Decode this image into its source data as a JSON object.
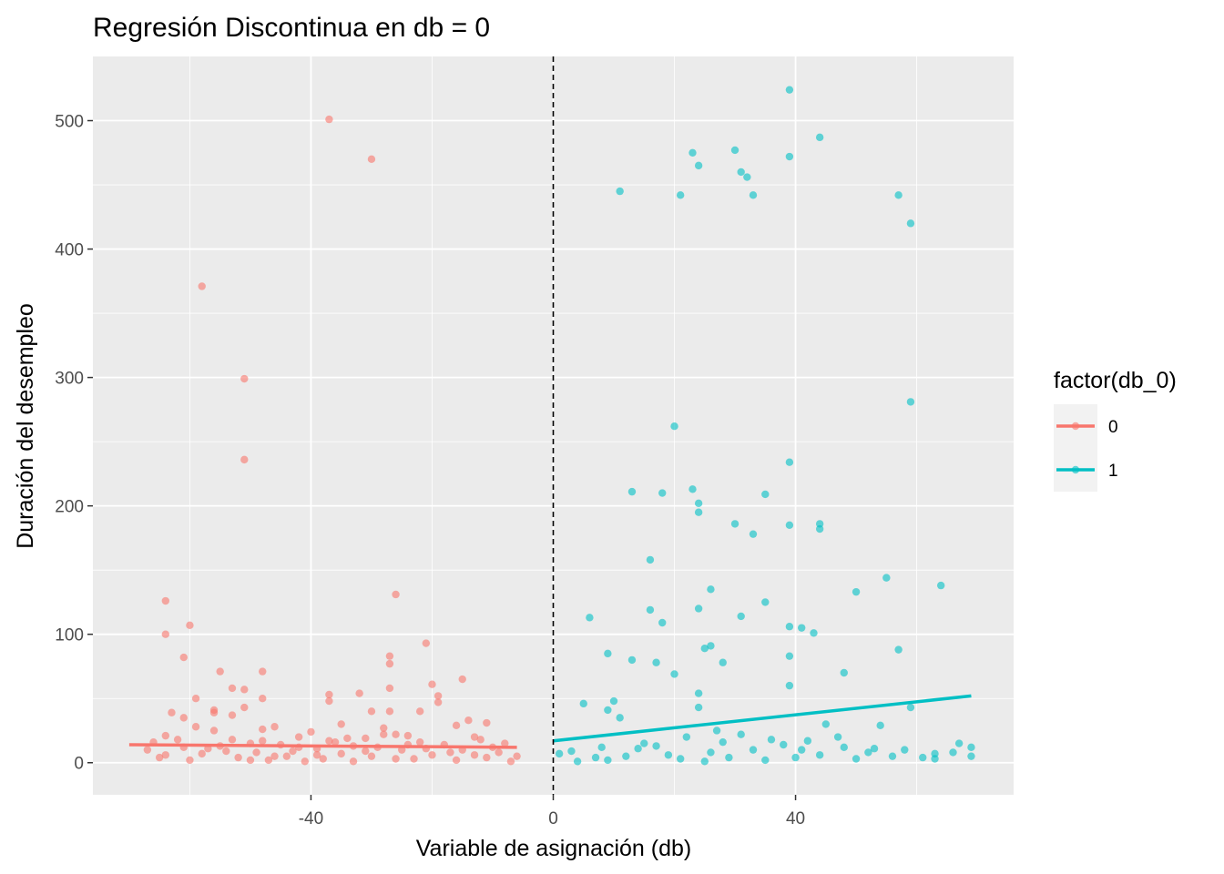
{
  "chart_data": {
    "type": "scatter",
    "title": "Regresión Discontinua en db = 0",
    "xlabel": "Variable de asignación (db)",
    "ylabel": "Duración del desempleo",
    "xlim": [
      -76,
      76
    ],
    "ylim": [
      -25,
      550
    ],
    "x_ticks": [
      -40,
      0,
      40
    ],
    "x_tick_labels": [
      "-40",
      "0",
      "40"
    ],
    "y_ticks": [
      0,
      100,
      200,
      300,
      400,
      500
    ],
    "y_tick_labels": [
      "0",
      "100",
      "200",
      "300",
      "400",
      "500"
    ],
    "grid": true,
    "cutoff": {
      "x": 0,
      "style": "dashed"
    },
    "legend": {
      "title": "factor(db_0)",
      "placement": "right",
      "entries": [
        "0",
        "1"
      ]
    },
    "colors": {
      "0": "#F8766D",
      "1": "#00BFC4",
      "panel": "#EBEBEB",
      "grid": "#FFFFFF"
    },
    "series": [
      {
        "name": "0",
        "points": [
          [
            -37,
            501
          ],
          [
            -30,
            470
          ],
          [
            -58,
            371
          ],
          [
            -51,
            299
          ],
          [
            -51,
            236
          ],
          [
            -26,
            131
          ],
          [
            -64,
            126
          ],
          [
            -60,
            107
          ],
          [
            -64,
            100
          ],
          [
            -21,
            93
          ],
          [
            -27,
            83
          ],
          [
            -61,
            82
          ],
          [
            -27,
            77
          ],
          [
            -55,
            71
          ],
          [
            -48,
            71
          ],
          [
            -15,
            65
          ],
          [
            -20,
            61
          ],
          [
            -53,
            58
          ],
          [
            -51,
            57
          ],
          [
            -27,
            58
          ],
          [
            -32,
            54
          ],
          [
            -37,
            53
          ],
          [
            -19,
            52
          ],
          [
            -59,
            50
          ],
          [
            -48,
            50
          ],
          [
            -37,
            48
          ],
          [
            -19,
            47
          ],
          [
            -51,
            43
          ],
          [
            -30,
            40
          ],
          [
            -27,
            40
          ],
          [
            -63,
            39
          ],
          [
            -22,
            40
          ],
          [
            -56,
            41
          ],
          [
            -56,
            39
          ],
          [
            -53,
            37
          ],
          [
            -61,
            35
          ],
          [
            -11,
            31
          ],
          [
            -14,
            33
          ],
          [
            -16,
            29
          ],
          [
            -35,
            30
          ],
          [
            -46,
            28
          ],
          [
            -28,
            27
          ],
          [
            -56,
            25
          ],
          [
            -59,
            28
          ],
          [
            -48,
            26
          ],
          [
            -40,
            24
          ],
          [
            -26,
            22
          ],
          [
            -13,
            20
          ],
          [
            -24,
            21
          ],
          [
            -64,
            21
          ],
          [
            -42,
            20
          ],
          [
            -12,
            18
          ],
          [
            -31,
            19
          ],
          [
            -53,
            18
          ],
          [
            -37,
            17
          ],
          [
            -50,
            15
          ],
          [
            -66,
            16
          ],
          [
            -22,
            16
          ],
          [
            -8,
            15
          ],
          [
            -45,
            14
          ],
          [
            -33,
            13
          ],
          [
            -18,
            14
          ],
          [
            -61,
            12
          ],
          [
            -55,
            13
          ],
          [
            -29,
            12
          ],
          [
            -39,
            11
          ],
          [
            -15,
            10
          ],
          [
            -67,
            10
          ],
          [
            -43,
            9
          ],
          [
            -25,
            10
          ],
          [
            -9,
            8
          ],
          [
            -49,
            8
          ],
          [
            -35,
            7
          ],
          [
            -58,
            7
          ],
          [
            -20,
            6
          ],
          [
            -64,
            6
          ],
          [
            -30,
            5
          ],
          [
            -44,
            5
          ],
          [
            -11,
            4
          ],
          [
            -52,
            4
          ],
          [
            -38,
            3
          ],
          [
            -26,
            3
          ],
          [
            -16,
            2
          ],
          [
            -60,
            2
          ],
          [
            -47,
            2
          ],
          [
            -33,
            1
          ],
          [
            -7,
            1
          ],
          [
            -41,
            1
          ],
          [
            -23,
            3
          ],
          [
            -54,
            9
          ],
          [
            -36,
            16
          ],
          [
            -62,
            18
          ],
          [
            -28,
            22
          ],
          [
            -42,
            12
          ],
          [
            -17,
            8
          ],
          [
            -57,
            11
          ],
          [
            -46,
            5
          ],
          [
            -31,
            9
          ],
          [
            -13,
            6
          ],
          [
            -65,
            4
          ],
          [
            -21,
            11
          ],
          [
            -50,
            2
          ],
          [
            -39,
            6
          ],
          [
            -24,
            14
          ],
          [
            -34,
            19
          ],
          [
            -10,
            12
          ],
          [
            -48,
            17
          ],
          [
            -6,
            5
          ]
        ],
        "fit": {
          "x": [
            -70,
            -6
          ],
          "y": [
            14,
            12
          ]
        }
      },
      {
        "name": "1",
        "points": [
          [
            39,
            524
          ],
          [
            44,
            487
          ],
          [
            30,
            477
          ],
          [
            23,
            475
          ],
          [
            39,
            472
          ],
          [
            24,
            465
          ],
          [
            31,
            460
          ],
          [
            32,
            456
          ],
          [
            11,
            445
          ],
          [
            21,
            442
          ],
          [
            33,
            442
          ],
          [
            57,
            442
          ],
          [
            59,
            420
          ],
          [
            59,
            281
          ],
          [
            20,
            262
          ],
          [
            39,
            234
          ],
          [
            23,
            213
          ],
          [
            13,
            211
          ],
          [
            18,
            210
          ],
          [
            35,
            209
          ],
          [
            24,
            202
          ],
          [
            24,
            195
          ],
          [
            30,
            186
          ],
          [
            39,
            185
          ],
          [
            44,
            186
          ],
          [
            44,
            182
          ],
          [
            33,
            178
          ],
          [
            16,
            158
          ],
          [
            55,
            144
          ],
          [
            64,
            138
          ],
          [
            50,
            133
          ],
          [
            26,
            135
          ],
          [
            35,
            125
          ],
          [
            16,
            119
          ],
          [
            24,
            120
          ],
          [
            31,
            114
          ],
          [
            6,
            113
          ],
          [
            18,
            109
          ],
          [
            39,
            106
          ],
          [
            41,
            105
          ],
          [
            43,
            101
          ],
          [
            9,
            85
          ],
          [
            26,
            91
          ],
          [
            25,
            89
          ],
          [
            39,
            83
          ],
          [
            13,
            80
          ],
          [
            17,
            78
          ],
          [
            28,
            78
          ],
          [
            20,
            69
          ],
          [
            48,
            70
          ],
          [
            39,
            60
          ],
          [
            57,
            88
          ],
          [
            24,
            54
          ],
          [
            5,
            46
          ],
          [
            10,
            48
          ],
          [
            9,
            41
          ],
          [
            24,
            43
          ],
          [
            59,
            43
          ],
          [
            11,
            35
          ],
          [
            27,
            25
          ],
          [
            45,
            30
          ],
          [
            54,
            29
          ],
          [
            47,
            20
          ],
          [
            22,
            20
          ],
          [
            15,
            15
          ],
          [
            36,
            18
          ],
          [
            8,
            12
          ],
          [
            41,
            10
          ],
          [
            52,
            8
          ],
          [
            63,
            7
          ],
          [
            69,
            12
          ],
          [
            67,
            15
          ],
          [
            3,
            9
          ],
          [
            19,
            6
          ],
          [
            29,
            4
          ],
          [
            50,
            3
          ],
          [
            61,
            4
          ],
          [
            33,
            10
          ],
          [
            12,
            5
          ],
          [
            26,
            8
          ],
          [
            44,
            6
          ],
          [
            1,
            7
          ],
          [
            56,
            5
          ],
          [
            38,
            14
          ],
          [
            31,
            22
          ],
          [
            21,
            3
          ],
          [
            9,
            2
          ],
          [
            14,
            11
          ],
          [
            42,
            17
          ],
          [
            25,
            1
          ],
          [
            35,
            2
          ],
          [
            48,
            12
          ],
          [
            58,
            10
          ],
          [
            66,
            8
          ],
          [
            4,
            1
          ],
          [
            17,
            13
          ],
          [
            40,
            4
          ],
          [
            28,
            16
          ],
          [
            53,
            11
          ],
          [
            63,
            3
          ],
          [
            69,
            5
          ],
          [
            7,
            4
          ]
        ],
        "fit": {
          "x": [
            0,
            69
          ],
          "y": [
            17,
            52
          ]
        }
      }
    ]
  }
}
